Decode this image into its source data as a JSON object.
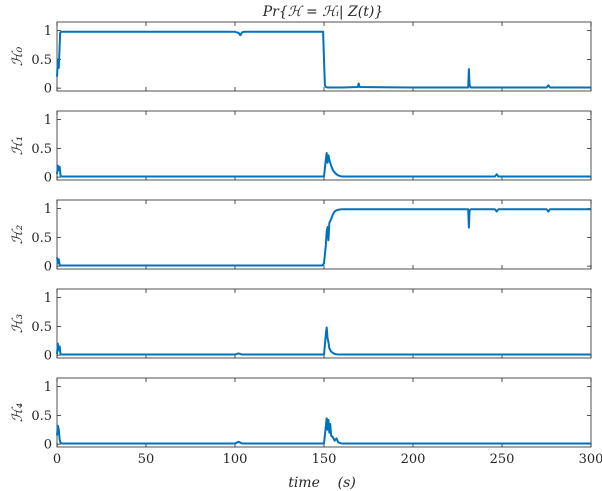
{
  "chart_data": {
    "type": "line",
    "title": "Pr{ℋ = ℋᵢ| Z(t)}",
    "xlabel": "time    (s)",
    "xlim": [
      0,
      300
    ],
    "xticks": [
      0,
      50,
      100,
      150,
      200,
      250,
      300
    ],
    "line_color": "#0072BD",
    "subplots": [
      {
        "ylabel": "ℋ₀",
        "ylim": [
          -0.05,
          1.15
        ],
        "yticks": [
          0,
          0.5,
          1
        ],
        "ytick_labels": [
          "0",
          "0.5",
          "1"
        ],
        "x": [
          0,
          0.5,
          1,
          1.8,
          2.5,
          3,
          50,
          100,
          102,
          103,
          104,
          105,
          149.5,
          150,
          150.5,
          151,
          152,
          153,
          160,
          169,
          169.5,
          170,
          200,
          231,
          231.4,
          231.8,
          232.5,
          250,
          275,
          276,
          277,
          300
        ],
        "values": [
          0.2,
          0.5,
          0.35,
          0.97,
          0.98,
          0.98,
          0.98,
          0.98,
          0.96,
          0.92,
          0.97,
          0.98,
          0.98,
          0.5,
          0.05,
          0.02,
          0.01,
          0.01,
          0.01,
          0.02,
          0.08,
          0.02,
          0.01,
          0.01,
          0.33,
          0.05,
          0.01,
          0.01,
          0.01,
          0.05,
          0.01,
          0.01
        ]
      },
      {
        "ylabel": "ℋ₁",
        "ylim": [
          -0.05,
          1.15
        ],
        "yticks": [
          0,
          0.5,
          1
        ],
        "ytick_labels": [
          "0",
          "0.5",
          "1"
        ],
        "x": [
          0,
          0.5,
          1,
          1.5,
          2,
          3,
          5,
          100,
          150,
          151,
          151.5,
          152,
          152.5,
          153,
          154,
          155,
          156,
          157,
          158,
          160,
          165,
          246,
          247,
          248,
          300
        ],
        "values": [
          0.05,
          0.2,
          0.12,
          0.18,
          0.02,
          0.01,
          0.01,
          0.01,
          0.01,
          0.3,
          0.42,
          0.25,
          0.38,
          0.3,
          0.2,
          0.12,
          0.08,
          0.05,
          0.03,
          0.01,
          0.01,
          0.01,
          0.05,
          0.01,
          0.01
        ]
      },
      {
        "ylabel": "ℋ₂",
        "ylim": [
          -0.05,
          1.15
        ],
        "yticks": [
          0,
          0.5,
          1
        ],
        "ytick_labels": [
          "0",
          "0.5",
          "1"
        ],
        "x": [
          0,
          0.5,
          1,
          1.5,
          2,
          3,
          100,
          149,
          150,
          151,
          151.5,
          152,
          152.5,
          153,
          154,
          155,
          156,
          157,
          158,
          160,
          165,
          200,
          231,
          231.4,
          231.8,
          232.5,
          246,
          247,
          248,
          275,
          276,
          277,
          300
        ],
        "values": [
          0.15,
          0.05,
          0.12,
          0.02,
          0.01,
          0.01,
          0.01,
          0.01,
          0.05,
          0.35,
          0.6,
          0.68,
          0.45,
          0.75,
          0.82,
          0.9,
          0.95,
          0.97,
          0.98,
          0.99,
          0.99,
          0.99,
          0.99,
          0.67,
          0.97,
          0.99,
          0.99,
          0.95,
          0.99,
          0.99,
          0.95,
          0.99,
          0.99
        ]
      },
      {
        "ylabel": "ℋ₃",
        "ylim": [
          -0.05,
          1.15
        ],
        "yticks": [
          0,
          0.5,
          1
        ],
        "ytick_labels": [
          "0",
          "0.5",
          "1"
        ],
        "x": [
          0,
          0.5,
          1,
          1.5,
          2,
          100,
          102,
          104,
          150,
          151,
          151.5,
          152,
          152.5,
          153,
          154,
          155,
          156,
          158,
          160,
          300
        ],
        "values": [
          0.02,
          0.2,
          0.08,
          0.15,
          0.01,
          0.01,
          0.03,
          0.01,
          0.01,
          0.35,
          0.48,
          0.3,
          0.22,
          0.12,
          0.06,
          0.04,
          0.02,
          0.01,
          0.01,
          0.01
        ]
      },
      {
        "ylabel": "ℋ₄",
        "ylim": [
          -0.05,
          1.15
        ],
        "yticks": [
          0,
          0.5,
          1
        ],
        "ytick_labels": [
          "0",
          "0.5",
          "1"
        ],
        "x": [
          0,
          0.5,
          1,
          1.5,
          2,
          3,
          100,
          102,
          104,
          150,
          151,
          151.5,
          152,
          152.5,
          153,
          153.5,
          154,
          155,
          156,
          157,
          158,
          160,
          300
        ],
        "values": [
          0.15,
          0.32,
          0.25,
          0.08,
          0.02,
          0.01,
          0.01,
          0.04,
          0.01,
          0.01,
          0.3,
          0.45,
          0.25,
          0.42,
          0.2,
          0.35,
          0.15,
          0.12,
          0.06,
          0.1,
          0.03,
          0.01,
          0.01
        ]
      }
    ]
  }
}
